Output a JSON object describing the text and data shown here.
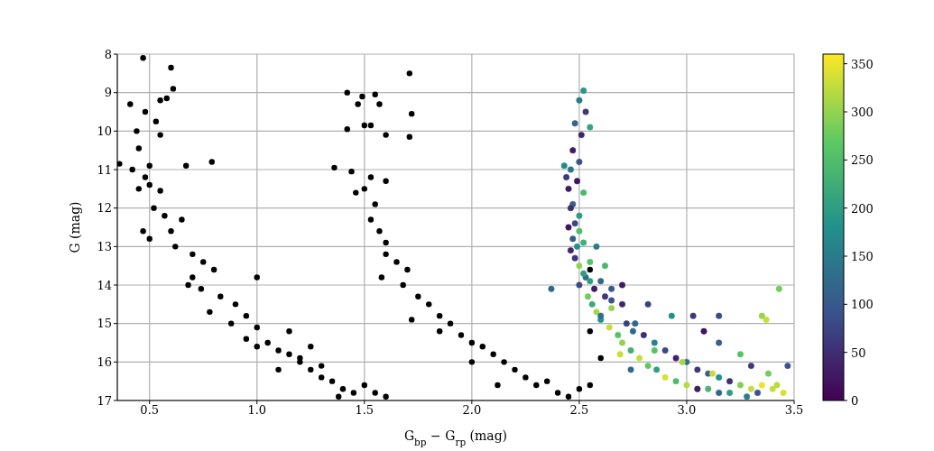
{
  "chart_data": {
    "type": "scatter",
    "xlabel": "G$_{bp}$ − G$_{rp}$ (mag)",
    "ylabel": "G (mag)",
    "xlim": [
      0.35,
      3.5
    ],
    "xticks": [
      0.5,
      {
        "value": 1,
        "label": "1.0"
      },
      1.5,
      {
        "value": 2,
        "label": "2.0"
      },
      2.5,
      {
        "value": 3,
        "label": "3.0"
      },
      3.5
    ],
    "ylim": [
      17,
      8
    ],
    "yticks": [
      8,
      9,
      10,
      11,
      12,
      13,
      14,
      15,
      16,
      17
    ],
    "grid": true,
    "marker": "circle",
    "clim": [
      0,
      360
    ],
    "cticks": [
      0,
      50,
      100,
      150,
      200,
      250,
      300,
      350
    ],
    "series": [
      {
        "color": "#000000",
        "x": [
          0.47,
          0.6,
          0.61,
          0.48,
          0.53,
          0.55,
          0.58,
          0.41,
          0.45,
          0.55,
          0.44,
          0.5,
          0.67,
          0.79,
          0.36,
          0.42,
          0.45,
          0.5,
          0.55,
          0.48,
          0.52,
          0.57,
          0.47,
          0.5,
          0.6,
          0.65,
          0.62,
          0.7,
          0.75,
          0.7,
          0.8,
          0.68,
          0.74,
          0.83,
          0.9,
          0.78,
          0.95,
          0.88,
          1.0,
          0.95,
          1.05,
          1.1,
          1.0,
          1.15,
          1.2,
          1.0,
          1.15,
          1.2,
          1.25,
          1.3,
          1.35,
          1.4,
          1.45,
          1.38,
          1.3,
          1.5,
          1.55,
          1.6,
          1.1,
          1.25,
          1.71,
          1.42,
          1.49,
          1.55,
          1.47,
          1.57,
          1.72,
          1.71,
          1.6,
          1.5,
          1.42,
          1.53,
          1.36,
          1.44,
          1.53,
          1.5,
          1.46,
          1.55,
          1.6,
          1.53,
          1.57,
          1.6,
          1.6,
          1.65,
          1.7,
          1.58,
          1.68,
          1.75,
          1.8,
          1.72,
          1.85,
          1.9,
          1.95,
          1.85,
          2.0,
          2.05,
          2.1,
          2.0,
          2.15,
          2.2,
          2.25,
          2.3,
          2.35,
          2.4,
          2.45,
          2.5,
          2.55,
          2.6,
          2.12,
          2.55,
          2.55
        ],
        "values": [
          8.1,
          8.35,
          8.9,
          9.5,
          9.75,
          9.2,
          9.15,
          9.3,
          10.45,
          10.1,
          10.0,
          10.9,
          10.9,
          10.8,
          10.85,
          11.0,
          11.5,
          11.4,
          11.55,
          11.2,
          12.0,
          12.2,
          12.6,
          12.8,
          12.6,
          12.3,
          13.0,
          13.2,
          13.4,
          13.8,
          13.6,
          14.0,
          14.1,
          14.3,
          14.5,
          14.7,
          14.8,
          15.0,
          15.1,
          15.4,
          15.5,
          15.7,
          15.6,
          15.8,
          15.9,
          13.8,
          15.2,
          16.0,
          16.2,
          16.4,
          16.5,
          16.7,
          16.8,
          16.9,
          16.1,
          16.6,
          16.8,
          16.9,
          16.2,
          15.6,
          8.5,
          9.0,
          9.1,
          9.05,
          9.3,
          9.3,
          9.55,
          10.15,
          10.1,
          9.85,
          9.95,
          9.85,
          10.95,
          11.05,
          11.2,
          11.5,
          11.6,
          11.9,
          11.3,
          12.3,
          12.6,
          12.9,
          13.2,
          13.4,
          13.6,
          13.8,
          14.0,
          14.3,
          14.5,
          14.9,
          14.8,
          15.0,
          15.3,
          15.2,
          15.5,
          15.6,
          15.8,
          16.0,
          16.0,
          16.2,
          16.4,
          16.6,
          16.5,
          16.8,
          16.9,
          16.7,
          16.6,
          15.9,
          16.6,
          13.6,
          15.2
        ]
      },
      {
        "x": [
          2.52,
          2.5,
          2.53,
          2.48,
          2.51,
          2.55,
          2.47,
          2.5,
          2.46,
          2.49,
          2.52,
          2.44,
          2.47,
          2.5,
          2.45,
          2.48,
          2.43,
          2.46,
          2.5,
          2.47,
          2.45,
          2.49,
          2.52,
          2.48,
          2.5,
          2.46,
          2.53,
          2.55,
          2.5,
          2.52,
          2.57,
          2.54,
          2.6,
          2.56,
          2.62,
          2.58,
          2.65,
          2.6,
          2.7,
          2.64,
          2.72,
          2.68,
          2.76,
          2.7,
          2.8,
          2.74,
          2.85,
          2.78,
          2.9,
          2.82,
          2.95,
          2.86,
          3.0,
          2.9,
          3.05,
          2.95,
          3.1,
          3.0,
          3.15,
          3.05,
          3.2,
          3.1,
          3.25,
          3.15,
          3.3,
          3.2,
          3.35,
          3.28,
          3.4,
          3.33,
          3.42,
          3.38,
          3.45,
          3.3,
          3.25,
          3.15,
          3.08,
          2.93,
          2.82,
          2.7,
          2.62,
          2.58,
          3.47,
          3.35,
          3.15,
          3.37,
          3.05,
          2.69,
          2.74,
          2.65,
          2.37,
          2.6,
          3.03,
          3.43,
          2.55,
          2.65,
          2.75,
          2.85,
          2.98,
          3.12
        ],
        "values": [
          8.95,
          9.2,
          9.5,
          9.8,
          10.1,
          9.9,
          10.5,
          10.8,
          11.0,
          11.3,
          11.6,
          11.2,
          11.9,
          12.2,
          11.5,
          12.4,
          10.9,
          12.0,
          12.6,
          12.8,
          12.5,
          13.0,
          12.9,
          13.3,
          13.5,
          13.1,
          13.8,
          13.4,
          14.0,
          13.7,
          14.1,
          14.3,
          13.9,
          14.5,
          14.3,
          14.7,
          14.4,
          14.9,
          14.5,
          15.1,
          15.0,
          15.3,
          15.0,
          15.5,
          15.3,
          15.7,
          15.5,
          15.9,
          15.7,
          16.1,
          15.9,
          16.2,
          16.0,
          16.4,
          16.2,
          16.5,
          16.3,
          16.6,
          16.4,
          16.7,
          16.5,
          16.7,
          16.6,
          16.8,
          16.7,
          16.8,
          16.6,
          16.9,
          16.7,
          16.8,
          16.6,
          16.3,
          16.8,
          16.1,
          15.8,
          15.5,
          15.2,
          14.8,
          14.5,
          14.0,
          13.5,
          13.0,
          16.1,
          14.8,
          14.8,
          14.9,
          16.7,
          15.8,
          16.2,
          14.1,
          14.1,
          14.8,
          14.8,
          14.1,
          13.9,
          14.6,
          15.2,
          15.7,
          16.0,
          16.3
        ],
        "cvalues": [
          190,
          150,
          60,
          120,
          40,
          210,
          30,
          90,
          140,
          20,
          240,
          60,
          110,
          200,
          30,
          80,
          170,
          50,
          250,
          100,
          20,
          180,
          230,
          60,
          300,
          40,
          130,
          260,
          80,
          200,
          30,
          280,
          120,
          220,
          60,
          310,
          90,
          180,
          40,
          330,
          70,
          260,
          120,
          300,
          50,
          230,
          160,
          330,
          80,
          270,
          40,
          200,
          130,
          340,
          60,
          250,
          110,
          320,
          180,
          300,
          50,
          240,
          290,
          120,
          330,
          200,
          350,
          150,
          330,
          90,
          320,
          280,
          340,
          60,
          260,
          110,
          20,
          180,
          70,
          30,
          240,
          150,
          90,
          300,
          80,
          330,
          30,
          330,
          120,
          100,
          120,
          130,
          60,
          280,
          200,
          300,
          120,
          260,
          310,
          330
        ],
        "colors": [
          "#289787",
          "#2a7c8c",
          "#3e3779",
          "#32678b",
          "#40256c",
          "#35a47e",
          "#411c66",
          "#3b528b",
          "#2d758b",
          "#421360",
          "#4ab670",
          "#3e3779",
          "#35608b",
          "#2f9d83",
          "#411c66",
          "#3c4985",
          "#248a8c",
          "#3f2e73",
          "#50bd6b",
          "#38598b",
          "#421360",
          "#21918c",
          "#43b075",
          "#3e3779",
          "#93d34d",
          "#40256c",
          "#2f6e8b",
          "#57c367",
          "#3c4985",
          "#2f9d83",
          "#411c66",
          "#70cc5b",
          "#32678b",
          "#3caa79",
          "#3e3779",
          "#a5d647",
          "#3b528b",
          "#21918c",
          "#40256c",
          "#c8dd39",
          "#3d407f",
          "#57c367",
          "#32678b",
          "#93d34d",
          "#3f2e73",
          "#43b075",
          "#27838c",
          "#c8dd39",
          "#3c4985",
          "#5ec962",
          "#40256c",
          "#2f9d83",
          "#2f6e8b",
          "#dae032",
          "#3e3779",
          "#50bd6b",
          "#35608b",
          "#b7da40",
          "#21918c",
          "#93d34d",
          "#3f2e73",
          "#4ab670",
          "#81d054",
          "#32678b",
          "#c8dd39",
          "#2f9d83",
          "#ebe42c",
          "#2a7c8c",
          "#c8dd39",
          "#3b528b",
          "#b7da40",
          "#70cc5b",
          "#dae032",
          "#3e3779",
          "#57c367",
          "#35608b",
          "#421360",
          "#21918c",
          "#3d407f",
          "#411c66",
          "#4ab670",
          "#2a7c8c",
          "#3b528b",
          "#93d34d",
          "#3c4985",
          "#c8dd39",
          "#411c66",
          "#c8dd39",
          "#32678b",
          "#38598b",
          "#32678b",
          "#2f6e8b",
          "#3e3779",
          "#70cc5b",
          "#2f9d83",
          "#93d34d",
          "#32678b",
          "#57c367",
          "#a5d647",
          "#c8dd39"
        ]
      }
    ]
  }
}
